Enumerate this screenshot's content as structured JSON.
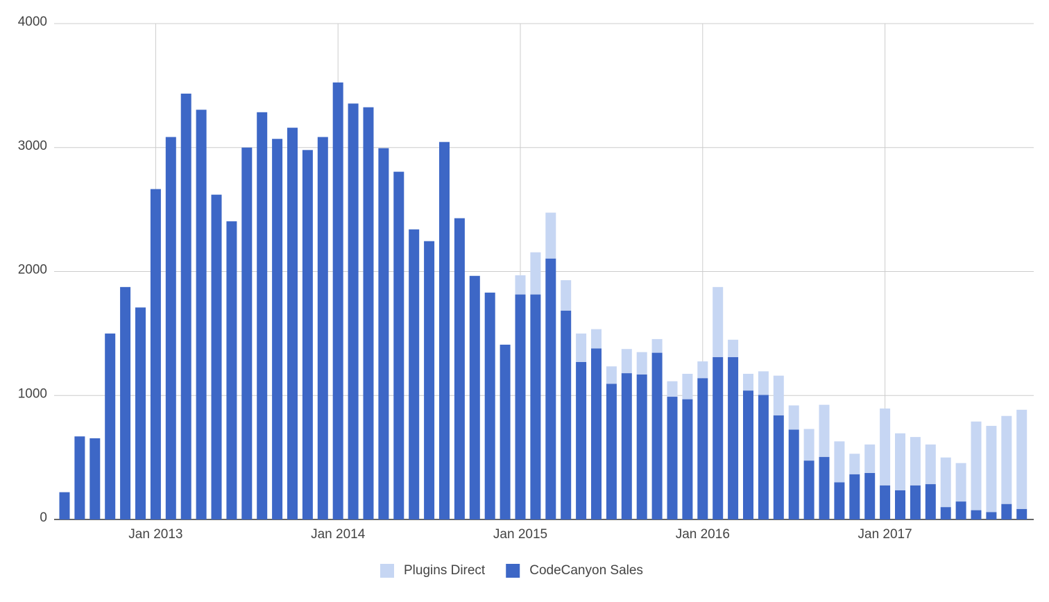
{
  "chart_data": {
    "type": "stacked-bar",
    "x": [
      "2012-07",
      "2012-08",
      "2012-09",
      "2012-10",
      "2012-11",
      "2012-12",
      "2013-01",
      "2013-02",
      "2013-03",
      "2013-04",
      "2013-05",
      "2013-06",
      "2013-07",
      "2013-08",
      "2013-09",
      "2013-10",
      "2013-11",
      "2013-12",
      "2014-01",
      "2014-02",
      "2014-03",
      "2014-04",
      "2014-05",
      "2014-06",
      "2014-07",
      "2014-08",
      "2014-09",
      "2014-10",
      "2014-11",
      "2014-12",
      "2015-01",
      "2015-02",
      "2015-03",
      "2015-04",
      "2015-05",
      "2015-06",
      "2015-07",
      "2015-08",
      "2015-09",
      "2015-10",
      "2015-11",
      "2015-12",
      "2016-01",
      "2016-02",
      "2016-03",
      "2016-04",
      "2016-05",
      "2016-06",
      "2016-07",
      "2016-08",
      "2016-09",
      "2016-10",
      "2016-11",
      "2016-12",
      "2017-01",
      "2017-02",
      "2017-03",
      "2017-04",
      "2017-05",
      "2017-06",
      "2017-07",
      "2017-08",
      "2017-09",
      "2017-10"
    ],
    "series": [
      {
        "name": "Plugins Direct",
        "color": "#c6d6f3",
        "values": [
          0,
          0,
          0,
          0,
          0,
          0,
          0,
          0,
          0,
          0,
          0,
          0,
          0,
          0,
          0,
          0,
          0,
          0,
          0,
          0,
          0,
          0,
          0,
          0,
          0,
          0,
          0,
          0,
          0,
          0,
          155,
          340,
          370,
          245,
          230,
          155,
          140,
          195,
          180,
          110,
          125,
          205,
          135,
          565,
          140,
          135,
          190,
          320,
          195,
          255,
          420,
          330,
          165,
          230,
          620,
          460,
          390,
          320,
          400,
          310,
          715,
          695,
          710,
          800
        ]
      },
      {
        "name": "CodeCanyon Sales",
        "color": "#3d67c6",
        "values": [
          220,
          670,
          655,
          1500,
          1875,
          1710,
          2665,
          3085,
          3435,
          3305,
          2620,
          2405,
          3000,
          3285,
          3070,
          3160,
          2980,
          3085,
          3525,
          3355,
          3325,
          2995,
          2805,
          2340,
          2245,
          3045,
          2430,
          1965,
          1830,
          1410,
          1815,
          1815,
          2105,
          1685,
          1270,
          1380,
          1095,
          1180,
          1170,
          1345,
          990,
          970,
          1140,
          1310,
          1310,
          1040,
          1005,
          840,
          725,
          475,
          505,
          300,
          365,
          375,
          275,
          235,
          275,
          285,
          100,
          145,
          75,
          60,
          125,
          85
        ]
      }
    ],
    "ylim": [
      0,
      4000
    ],
    "yticks": [
      0,
      1000,
      2000,
      3000,
      4000
    ],
    "xticks": [
      {
        "value": "2013-01",
        "label": "Jan 2013"
      },
      {
        "value": "2014-01",
        "label": "Jan 2014"
      },
      {
        "value": "2015-01",
        "label": "Jan 2015"
      },
      {
        "value": "2016-01",
        "label": "Jan 2016"
      },
      {
        "value": "2017-01",
        "label": "Jan 2017"
      }
    ],
    "grid": true,
    "legend": "bottom"
  }
}
